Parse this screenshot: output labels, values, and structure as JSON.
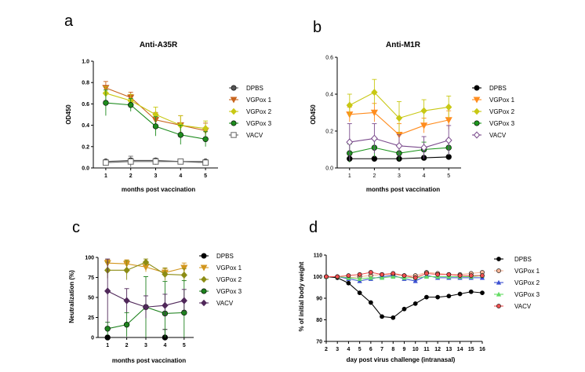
{
  "panels": [
    {
      "letter": "a",
      "type": "line",
      "title": "Anti-A35R",
      "xlabel": "months post  vaccination",
      "ylabel": "OD450",
      "x": [
        1,
        2,
        3,
        4,
        5
      ],
      "xlim": [
        0.5,
        5.5
      ],
      "ylim": [
        0,
        1.0
      ],
      "yticks": [
        "0.0",
        "0.2",
        "0.4",
        "0.6",
        "0.8",
        "1.0"
      ],
      "xticks": [
        "1",
        "2",
        "3",
        "4",
        "5"
      ],
      "series": [
        {
          "name": "DPBS",
          "color": "#555555",
          "marker": "circle",
          "values": [
            0.06,
            0.07,
            0.07,
            0.06,
            0.06
          ],
          "err": [
            0.01,
            0.02,
            0.02,
            0.01,
            0.01
          ]
        },
        {
          "name": "VGPox 1",
          "color": "#c8641e",
          "marker": "tri-down",
          "values": [
            0.75,
            0.66,
            0.45,
            0.4,
            0.35
          ],
          "err": [
            0.06,
            0.05,
            0.07,
            0.09,
            0.07
          ]
        },
        {
          "name": "VGPox 2",
          "color": "#c8c814",
          "marker": "diamond",
          "values": [
            0.7,
            0.63,
            0.5,
            0.4,
            0.37
          ],
          "err": [
            0.06,
            0.06,
            0.07,
            0.09,
            0.07
          ]
        },
        {
          "name": "VGPox 3",
          "color": "#1e8c1e",
          "marker": "circle",
          "values": [
            0.61,
            0.59,
            0.39,
            0.31,
            0.27
          ],
          "err": [
            0.12,
            0.06,
            0.09,
            0.09,
            0.07
          ]
        },
        {
          "name": "VACV",
          "color": "#666666",
          "marker": "square-open",
          "values": [
            0.05,
            0.06,
            0.06,
            0.06,
            0.05
          ],
          "err": [
            0.01,
            0.05,
            0.03,
            0.02,
            0.02
          ]
        }
      ]
    },
    {
      "letter": "b",
      "type": "line",
      "title": "Anti-M1R",
      "xlabel": "months post  vaccination",
      "ylabel": "OD450",
      "x": [
        1,
        2,
        3,
        4,
        5
      ],
      "xlim": [
        0.5,
        5.5
      ],
      "ylim": [
        0,
        0.6
      ],
      "yticks": [
        "0.0",
        "0.2",
        "0.4",
        "0.6"
      ],
      "xticks": [
        "1",
        "2",
        "3",
        "4",
        "5"
      ],
      "series": [
        {
          "name": "DPBS",
          "color": "#000000",
          "marker": "circle",
          "values": [
            0.05,
            0.05,
            0.05,
            0.055,
            0.06
          ],
          "err": [
            0.005,
            0.005,
            0.005,
            0.005,
            0.005
          ]
        },
        {
          "name": "VGPox 1",
          "color": "#ff8c1e",
          "marker": "tri-down",
          "values": [
            0.29,
            0.3,
            0.18,
            0.23,
            0.26
          ],
          "err": [
            0.04,
            0.05,
            0.06,
            0.04,
            0.05
          ]
        },
        {
          "name": "VGPox 2",
          "color": "#c8c814",
          "marker": "diamond",
          "values": [
            0.34,
            0.41,
            0.27,
            0.31,
            0.33
          ],
          "err": [
            0.06,
            0.07,
            0.09,
            0.06,
            0.06
          ]
        },
        {
          "name": "VGPox 3",
          "color": "#1e961e",
          "marker": "circle",
          "values": [
            0.08,
            0.11,
            0.08,
            0.1,
            0.11
          ],
          "err": [
            0.05,
            0.05,
            0.04,
            0.04,
            0.04
          ]
        },
        {
          "name": "VACV",
          "color": "#7a4a8c",
          "marker": "diamond-open",
          "values": [
            0.14,
            0.16,
            0.12,
            0.11,
            0.15
          ],
          "err": [
            0.1,
            0.08,
            0.06,
            0.06,
            0.08
          ]
        }
      ]
    },
    {
      "letter": "c",
      "type": "line",
      "title": "",
      "xlabel": "months post vaccination",
      "ylabel": "Neutralization (%)",
      "x": [
        1,
        2,
        3,
        4,
        5
      ],
      "xlim": [
        0.5,
        5.5
      ],
      "ylim": [
        0,
        100
      ],
      "yticks": [
        "0",
        "25",
        "50",
        "75",
        "100"
      ],
      "xticks": [
        "1",
        "2",
        "3",
        "4",
        "5"
      ],
      "series": [
        {
          "name": "DPBS",
          "color": "#000000",
          "marker": "circle",
          "values": [
            0,
            null,
            null,
            0,
            null
          ],
          "err": [
            0,
            null,
            null,
            10,
            null
          ]
        },
        {
          "name": "VGPox 1",
          "color": "#d2961e",
          "marker": "tri-down",
          "values": [
            93,
            92,
            88,
            81,
            87
          ],
          "err": [
            4,
            5,
            6,
            5,
            6
          ]
        },
        {
          "name": "VGPox 2",
          "color": "#8c8c14",
          "marker": "diamond",
          "values": [
            84,
            84,
            94,
            79,
            78
          ],
          "err": [
            10,
            12,
            4,
            8,
            8
          ]
        },
        {
          "name": "VGPox 3",
          "color": "#1e821e",
          "marker": "circle",
          "values": [
            11,
            16,
            38,
            30,
            31
          ],
          "err": [
            8,
            15,
            38,
            40,
            40
          ]
        },
        {
          "name": "VACV",
          "color": "#50285a",
          "marker": "diamond",
          "values": [
            58,
            46,
            38,
            40,
            46
          ],
          "err": [
            40,
            15,
            14,
            14,
            14
          ]
        }
      ]
    },
    {
      "letter": "d",
      "type": "line",
      "title": "",
      "xlabel": "day post virus challenge (intranasal)",
      "ylabel": "% of initial body weight",
      "x": [
        2,
        3,
        4,
        5,
        6,
        7,
        8,
        9,
        10,
        11,
        12,
        13,
        14,
        15,
        16
      ],
      "xlim": [
        2,
        16
      ],
      "ylim": [
        70,
        110
      ],
      "yticks": [
        "70",
        "80",
        "90",
        "100",
        "110"
      ],
      "xticks": [
        "2",
        "3",
        "4",
        "5",
        "6",
        "7",
        "8",
        "9",
        "10",
        "11",
        "12",
        "13",
        "14",
        "15",
        "16"
      ],
      "series": [
        {
          "name": "DPBS",
          "color": "#000000",
          "marker": "circle",
          "values": [
            100,
            99.5,
            97,
            92.5,
            88,
            81.5,
            81,
            85,
            87.5,
            90.5,
            90.5,
            91,
            92,
            93,
            92.5
          ],
          "err": null
        },
        {
          "name": "VGPox 1",
          "color": "#f5b496",
          "marker": "circle",
          "values": [
            100,
            100,
            99.5,
            100,
            100.5,
            101,
            101,
            100.5,
            100.5,
            102,
            101.5,
            101,
            101,
            101.5,
            102
          ],
          "err": null
        },
        {
          "name": "VGPox 2",
          "color": "#3c50d2",
          "marker": "tri-up",
          "values": [
            100,
            100,
            99,
            98,
            99,
            100,
            100.5,
            99,
            98,
            100.5,
            99.5,
            99.5,
            99.5,
            99.5,
            99.5
          ],
          "err": null
        },
        {
          "name": "VGPox 3",
          "color": "#64dc64",
          "marker": "tri-up",
          "values": [
            100,
            100,
            99.5,
            99,
            99.5,
            99.5,
            100,
            99.5,
            99.5,
            100,
            100,
            100,
            100,
            100,
            100.5
          ],
          "err": null
        },
        {
          "name": "VACV",
          "color": "#f05050",
          "marker": "circle",
          "values": [
            100,
            100,
            100.5,
            101,
            102,
            101,
            101.5,
            100.5,
            99.5,
            101.5,
            101,
            101,
            100.5,
            100.5,
            100.5
          ],
          "err": null
        }
      ]
    }
  ]
}
